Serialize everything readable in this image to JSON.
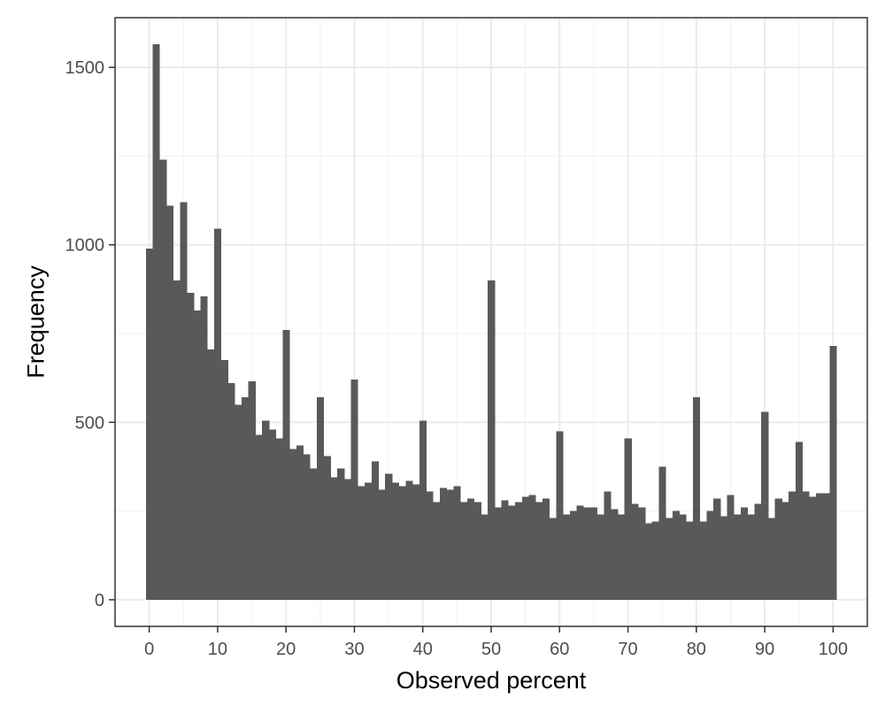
{
  "chart_data": {
    "type": "bar",
    "xlabel": "Observed percent",
    "ylabel": "Frequency",
    "xlim": [
      -5,
      105
    ],
    "ylim": [
      -75,
      1640
    ],
    "x_ticks": [
      0,
      10,
      20,
      30,
      40,
      50,
      60,
      70,
      80,
      90,
      100
    ],
    "y_ticks": [
      0,
      500,
      1000,
      1500
    ],
    "grid": true,
    "legend": "none",
    "bar_color": "#595959",
    "bins": [
      0,
      1,
      2,
      3,
      4,
      5,
      6,
      7,
      8,
      9,
      10,
      11,
      12,
      13,
      14,
      15,
      16,
      17,
      18,
      19,
      20,
      21,
      22,
      23,
      24,
      25,
      26,
      27,
      28,
      29,
      30,
      31,
      32,
      33,
      34,
      35,
      36,
      37,
      38,
      39,
      40,
      41,
      42,
      43,
      44,
      45,
      46,
      47,
      48,
      49,
      50,
      51,
      52,
      53,
      54,
      55,
      56,
      57,
      58,
      59,
      60,
      61,
      62,
      63,
      64,
      65,
      66,
      67,
      68,
      69,
      70,
      71,
      72,
      73,
      74,
      75,
      76,
      77,
      78,
      79,
      80,
      81,
      82,
      83,
      84,
      85,
      86,
      87,
      88,
      89,
      90,
      91,
      92,
      93,
      94,
      95,
      96,
      97,
      98,
      99,
      100
    ],
    "values": [
      990,
      1565,
      1240,
      1110,
      900,
      1120,
      865,
      815,
      855,
      705,
      1045,
      675,
      610,
      550,
      570,
      615,
      465,
      505,
      480,
      455,
      760,
      425,
      435,
      410,
      370,
      570,
      405,
      345,
      370,
      340,
      620,
      320,
      330,
      390,
      310,
      355,
      330,
      320,
      335,
      325,
      505,
      305,
      275,
      315,
      310,
      320,
      275,
      285,
      275,
      240,
      900,
      260,
      280,
      265,
      275,
      290,
      295,
      275,
      285,
      230,
      475,
      240,
      250,
      265,
      260,
      260,
      240,
      305,
      255,
      240,
      455,
      270,
      260,
      215,
      220,
      375,
      230,
      250,
      240,
      220,
      570,
      220,
      250,
      285,
      235,
      295,
      240,
      260,
      240,
      270,
      530,
      230,
      285,
      275,
      305,
      445,
      305,
      290,
      300,
      300,
      715
    ]
  }
}
